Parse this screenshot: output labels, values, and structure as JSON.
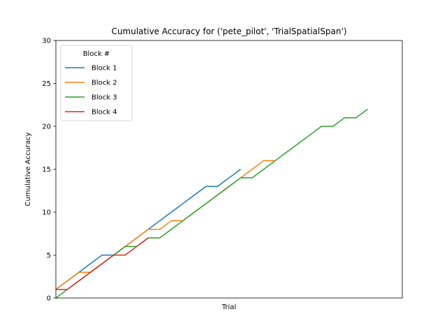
{
  "chart_data": {
    "type": "line",
    "title": "Cumulative Accuracy for ('pete_pilot', 'TrialSpatialSpan')",
    "xlabel": "Trial",
    "ylabel": "Cumulative Accuracy",
    "ylim": [
      0,
      30
    ],
    "xlim": [
      0,
      30
    ],
    "yticks": [
      "0",
      "5",
      "10",
      "15",
      "20",
      "25",
      "30"
    ],
    "grid": false,
    "legend": {
      "title": "Block #",
      "placement": "top-left"
    },
    "series": [
      {
        "name": "Block 1",
        "color": "#1f77b4",
        "x": [
          0,
          1,
          2,
          3,
          4,
          5,
          6,
          7,
          8,
          9,
          10,
          11,
          12,
          13,
          14,
          15,
          16
        ],
        "y": [
          1,
          2,
          3,
          4,
          5,
          5,
          6,
          7,
          8,
          9,
          10,
          11,
          12,
          13,
          13,
          14,
          15
        ]
      },
      {
        "name": "Block 2",
        "color": "#ff7f0e",
        "x": [
          0,
          1,
          2,
          3,
          4,
          5,
          6,
          7,
          8,
          9,
          10,
          11,
          12,
          13,
          14,
          15,
          16,
          17,
          18,
          19
        ],
        "y": [
          1,
          2,
          3,
          3,
          4,
          5,
          6,
          7,
          8,
          8,
          9,
          9,
          10,
          11,
          12,
          13,
          14,
          15,
          16,
          16
        ]
      },
      {
        "name": "Block 3",
        "color": "#2ca02c",
        "x": [
          0,
          1,
          2,
          3,
          4,
          5,
          6,
          7,
          8,
          9,
          10,
          11,
          12,
          13,
          14,
          15,
          16,
          17,
          18,
          19,
          20,
          21,
          22,
          23,
          24,
          25,
          26,
          27
        ],
        "y": [
          0,
          1,
          2,
          3,
          4,
          5,
          6,
          6,
          7,
          7,
          8,
          9,
          10,
          11,
          12,
          13,
          14,
          14,
          15,
          16,
          17,
          18,
          19,
          20,
          20,
          21,
          21,
          22
        ]
      },
      {
        "name": "Block 4",
        "color": "#d62728",
        "x": [
          0,
          1,
          2,
          3,
          4,
          5,
          6,
          7,
          8
        ],
        "y": [
          1,
          1,
          2,
          3,
          4,
          5,
          5,
          6,
          7
        ]
      }
    ]
  }
}
